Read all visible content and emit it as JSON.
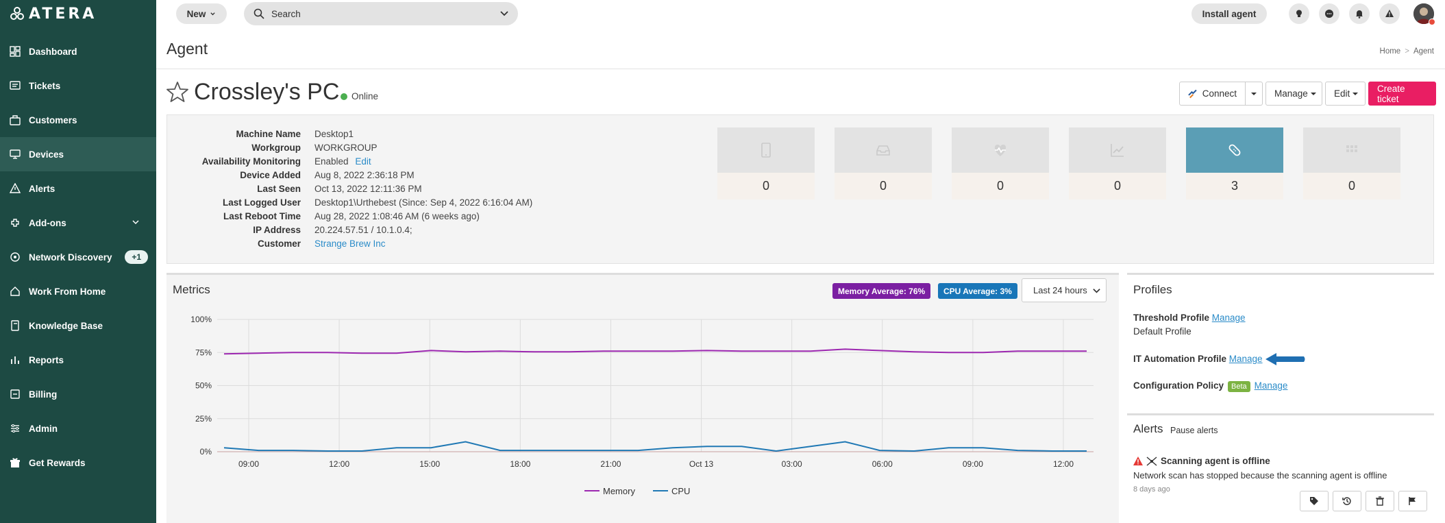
{
  "brand": {
    "name": "ATERA"
  },
  "sidebar": {
    "items": [
      {
        "label": "Dashboard",
        "icon": "dashboard-icon"
      },
      {
        "label": "Tickets",
        "icon": "tickets-icon"
      },
      {
        "label": "Customers",
        "icon": "customers-icon"
      },
      {
        "label": "Devices",
        "icon": "devices-icon",
        "active": true
      },
      {
        "label": "Alerts",
        "icon": "alerts-icon"
      },
      {
        "label": "Add-ons",
        "icon": "addons-icon",
        "expandable": true
      },
      {
        "label": "Network Discovery",
        "icon": "network-icon",
        "badge": "+1"
      },
      {
        "label": "Work From Home",
        "icon": "home-icon"
      },
      {
        "label": "Knowledge Base",
        "icon": "knowledge-icon"
      },
      {
        "label": "Reports",
        "icon": "reports-icon"
      },
      {
        "label": "Billing",
        "icon": "billing-icon"
      },
      {
        "label": "Admin",
        "icon": "admin-icon"
      },
      {
        "label": "Get Rewards",
        "icon": "rewards-icon"
      }
    ]
  },
  "topbar": {
    "new_label": "New",
    "search_placeholder": "Search",
    "install_label": "Install agent"
  },
  "page": {
    "title": "Agent",
    "breadcrumb": [
      "Home",
      "Agent"
    ]
  },
  "device": {
    "name": "Crossley's PC",
    "status": "Online"
  },
  "actions": {
    "connect": "Connect",
    "manage": "Manage",
    "edit": "Edit",
    "create_ticket": "Create ticket"
  },
  "info": {
    "rows": [
      {
        "label": "Machine Name",
        "value": "Desktop1"
      },
      {
        "label": "Workgroup",
        "value": "WORKGROUP"
      },
      {
        "label": "Availability Monitoring",
        "value": "Enabled",
        "link": "Edit"
      },
      {
        "label": "Device Added",
        "value": "Aug 8, 2022 2:36:18 PM"
      },
      {
        "label": "Last Seen",
        "value": "Oct 13, 2022 12:11:36 PM"
      },
      {
        "label": "Last Logged User",
        "value": "Desktop1\\Urthebest (Since: Sep 4, 2022 6:16:04 AM)"
      },
      {
        "label": "Last Reboot Time",
        "value": "Aug 28, 2022 1:08:46 AM (6 weeks ago)"
      },
      {
        "label": "IP Address",
        "value": "20.224.57.51 / 10.1.0.4;"
      },
      {
        "label": "Customer",
        "value": "Strange Brew Inc",
        "is_link": true
      }
    ]
  },
  "tiles": [
    {
      "icon": "tablet-icon",
      "value": "0"
    },
    {
      "icon": "inbox-icon",
      "value": "0"
    },
    {
      "icon": "heartbeat-icon",
      "value": "0"
    },
    {
      "icon": "chart-line-icon",
      "value": "0"
    },
    {
      "icon": "patch-icon",
      "value": "3",
      "active": true
    },
    {
      "icon": "grid-icon",
      "value": "0"
    }
  ],
  "metrics": {
    "title": "Metrics",
    "memory_avg": "Memory Average: 76%",
    "cpu_avg": "CPU Average: 3%",
    "range": "Last 24 hours"
  },
  "chart_data": {
    "type": "line",
    "title": "Metrics",
    "xlabel": "",
    "ylabel": "",
    "ylim": [
      0,
      100
    ],
    "yticks": [
      "0%",
      "25%",
      "50%",
      "75%",
      "100%"
    ],
    "xticks": [
      "09:00",
      "12:00",
      "15:00",
      "18:00",
      "21:00",
      "Oct 13",
      "03:00",
      "06:00",
      "09:00",
      "12:00"
    ],
    "series": [
      {
        "name": "Memory",
        "color": "#9c27b0",
        "values": [
          74,
          74.5,
          75,
          75,
          74.5,
          74.5,
          76.5,
          75.5,
          76,
          75.5,
          75.5,
          76,
          76,
          76,
          76.5,
          76,
          76,
          76,
          77.5,
          76.5,
          75.5,
          75,
          75,
          76,
          76,
          76
        ]
      },
      {
        "name": "CPU",
        "color": "#1f78b4",
        "values": [
          3,
          1,
          1,
          0.5,
          0.5,
          3,
          3,
          7.5,
          1,
          1,
          1,
          1,
          1,
          3,
          4,
          4,
          0.5,
          4,
          7.5,
          1,
          0.5,
          3,
          3,
          1,
          0.5,
          0.5
        ]
      }
    ]
  },
  "profiles": {
    "title": "Profiles",
    "threshold_label": "Threshold Profile",
    "threshold_link": "Manage",
    "threshold_value": "Default Profile",
    "automation_label": "IT Automation Profile",
    "automation_link": "Manage",
    "config_label": "Configuration Policy",
    "config_badge": "Beta",
    "config_link": "Manage"
  },
  "alerts": {
    "title": "Alerts",
    "pause_label": "Pause alerts",
    "item_title": "Scanning agent is offline",
    "item_desc": "Network scan has stopped because the scanning agent is offline",
    "item_time": "8 days ago"
  }
}
